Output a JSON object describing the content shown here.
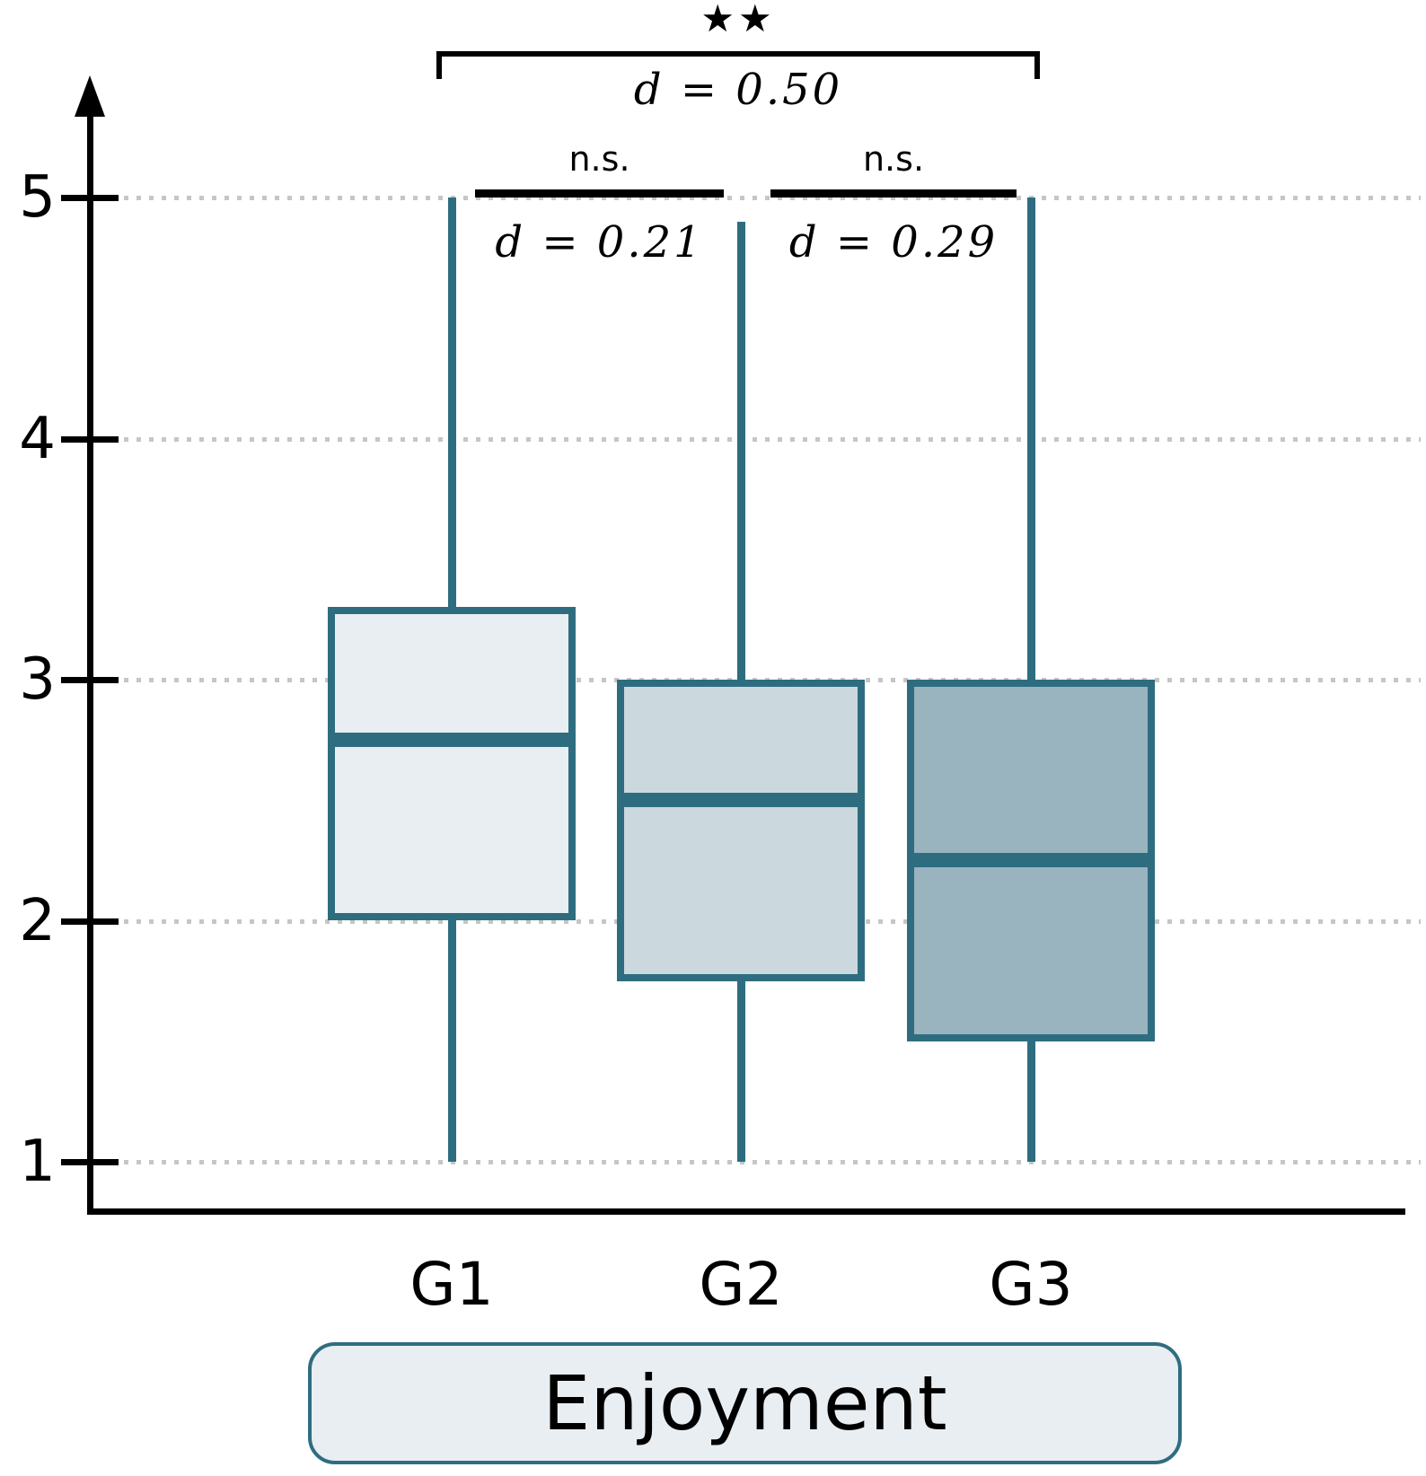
{
  "figure": {
    "background": "#ffffff",
    "accent_color": "#2e6d80",
    "grid_color": "#c6c6c6"
  },
  "chart_data": {
    "type": "box",
    "title": "",
    "xlabel": "Enjoyment",
    "ylabel": "",
    "ylim": [
      1,
      5
    ],
    "yticks": [
      1,
      2,
      3,
      4,
      5
    ],
    "grid": "horizontal dotted gridlines at each ytick",
    "legend": "none",
    "categories": [
      "G1",
      "G2",
      "G3"
    ],
    "series": [
      {
        "name": "G1",
        "min": 1,
        "q1": 2.0,
        "median": 2.75,
        "q3": 3.3,
        "max": 5,
        "fill": "#e8eef1"
      },
      {
        "name": "G2",
        "min": 1,
        "q1": 1.75,
        "median": 2.5,
        "q3": 3.0,
        "max": 4.9,
        "fill": "#cbd8dd"
      },
      {
        "name": "G3",
        "min": 1,
        "q1": 1.5,
        "median": 2.25,
        "q3": 3.0,
        "max": 5,
        "fill": "#99b4bf"
      }
    ],
    "comparisons": [
      {
        "between": [
          "G1",
          "G3"
        ],
        "significance": "★★",
        "effect_size": "d = 0.50"
      },
      {
        "between": [
          "G1",
          "G2"
        ],
        "significance": "n.s.",
        "effect_size": "d = 0.21"
      },
      {
        "between": [
          "G2",
          "G3"
        ],
        "significance": "n.s.",
        "effect_size": "d = 0.29"
      }
    ]
  }
}
